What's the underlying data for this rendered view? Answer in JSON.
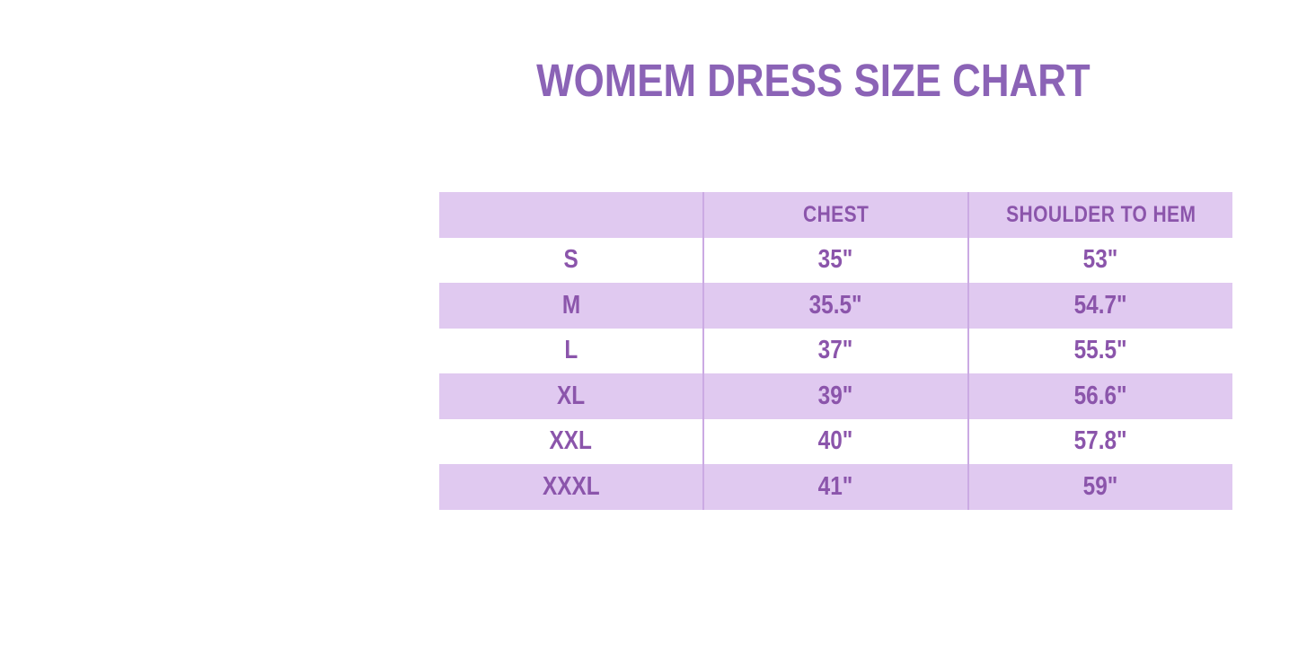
{
  "title": "WOMEM DRESS SIZE CHART",
  "colors": {
    "title": "#8B63B6",
    "table_text": "#8B55AB",
    "row_lavender": "#E0C9F0",
    "divider": "#CBAAE3",
    "page_background": "#FFFFFF"
  },
  "chart_data": {
    "type": "table",
    "title": "WOMEM DRESS SIZE CHART",
    "columns": [
      "",
      "CHEST",
      "SHOULDER TO HEM"
    ],
    "rows": [
      [
        "S",
        "35\"",
        "53\""
      ],
      [
        "M",
        "35.5\"",
        "54.7\""
      ],
      [
        "L",
        "37\"",
        "55.5\""
      ],
      [
        "XL",
        "39\"",
        "56.6\""
      ],
      [
        "XXL",
        "40\"",
        "57.8\""
      ],
      [
        "XXXL",
        "41\"",
        "59\""
      ]
    ],
    "layout": {
      "striping": "header and even data rows lavender, odd data rows white",
      "column_dividers": true,
      "row_borders": false
    }
  }
}
